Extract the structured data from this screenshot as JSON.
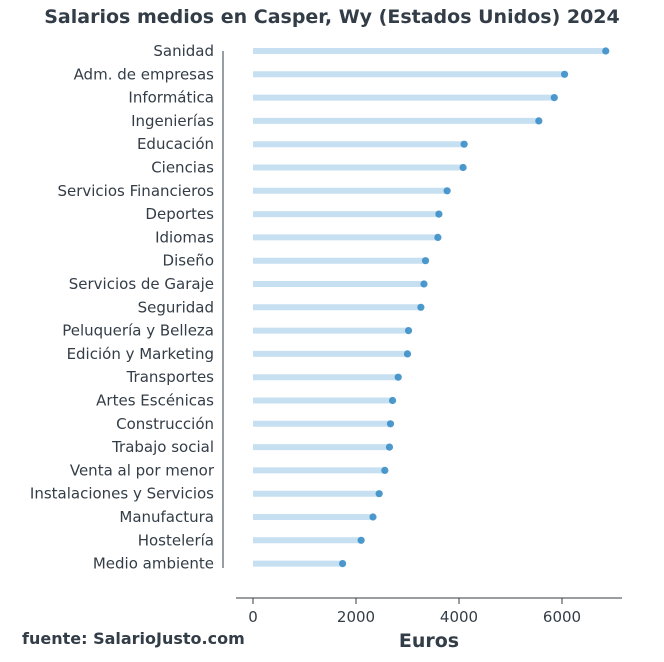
{
  "chart_data": {
    "type": "dot-bar",
    "title": "Salarios medios en Casper, Wy (Estados Unidos) 2024",
    "xlabel": "Euros",
    "ylabel": "",
    "xlim": [
      0,
      7200
    ],
    "xticks": [
      "0",
      "2000",
      "4000",
      "6000"
    ],
    "grid": false,
    "categories": [
      "Sanidad",
      "Adm. de empresas",
      "Informática",
      "Ingenierías",
      "Educación",
      "Ciencias",
      "Servicios Financieros",
      "Deportes",
      "Idiomas",
      "Diseño",
      "Servicios de Garaje",
      "Seguridad",
      "Peluquería y Belleza",
      "Edición y Marketing",
      "Transportes",
      "Artes Escénicas",
      "Construcción",
      "Trabajo social",
      "Venta al por menor",
      "Instalaciones y Servicios",
      "Manufactura",
      "Hostelería",
      "Medio ambiente"
    ],
    "values": [
      6850,
      6050,
      5850,
      5550,
      4100,
      4080,
      3770,
      3610,
      3590,
      3350,
      3320,
      3260,
      3020,
      3000,
      2820,
      2710,
      2670,
      2650,
      2560,
      2450,
      2330,
      2100,
      1740
    ],
    "colors": {
      "bar": "#c6e0f1",
      "dot": "#3a8ec8",
      "text": "#333d47",
      "axis": "#333d47"
    }
  },
  "source": "fuente: SalarioJusto.com"
}
